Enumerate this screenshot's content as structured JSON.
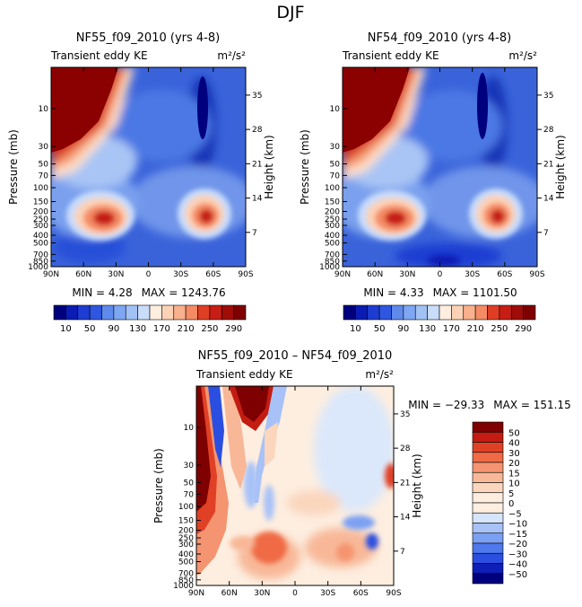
{
  "figure": {
    "title": "DJF"
  },
  "palettes": {
    "full": [
      "#00007f",
      "#0a1cb4",
      "#1e3cd2",
      "#2e56e0",
      "#4470e6",
      "#5f8aec",
      "#7ea6f2",
      "#a2c2f6",
      "#c9dcfa",
      "#fdeee0",
      "#fcd2b6",
      "#f9b08c",
      "#f58b64",
      "#ee6640",
      "#e03e24",
      "#c61e14",
      "#a00c08",
      "#7f0000"
    ],
    "diff": [
      "#00007f",
      "#0d1fb6",
      "#2a4fe0",
      "#4f78ec",
      "#7ba0f3",
      "#a8c2f7",
      "#d5e5fb",
      "#fdeee0",
      "#fbd6bd",
      "#f8b898",
      "#f59470",
      "#f06a45",
      "#e04126",
      "#c41c12",
      "#7f0000"
    ]
  },
  "chart_data": [
    {
      "type": "contour",
      "title": "NF55_f09_2010 (yrs 4-8)",
      "subtitle": "Transient eddy KE",
      "units": "m²/s²",
      "xlabel": "",
      "ylabel": "Pressure (mb)",
      "ylabel_right": "Height (km)",
      "x_ticks": [
        "90N",
        "60N",
        "30N",
        "0",
        "30S",
        "60S",
        "90S"
      ],
      "x_range": [
        90,
        -90
      ],
      "y_ticks": [
        10,
        30,
        50,
        70,
        100,
        150,
        200,
        250,
        300,
        400,
        500,
        700,
        850,
        1000
      ],
      "y_range_mb": [
        3,
        1000
      ],
      "height_ticks": [
        35,
        28,
        21,
        14,
        7
      ],
      "min_label": "MIN =    4.28",
      "max_label": "MAX = 1243.76",
      "min": 4.28,
      "max": 1243.76,
      "colorbar_levels": [
        10,
        30,
        50,
        70,
        90,
        110,
        130,
        150,
        170,
        190,
        210,
        230,
        250,
        270,
        290
      ],
      "colorbar_tick_labels": [
        "10",
        "50",
        "90",
        "130",
        "170",
        "210",
        "250",
        "290"
      ],
      "features": [
        {
          "name": "polar-vortex-north",
          "lat": 90,
          "p_mb": 3,
          "value": 1243.76
        },
        {
          "name": "jet-north",
          "lat": 37,
          "p_mb": 280,
          "value": 270
        },
        {
          "name": "jet-south",
          "lat": -48,
          "p_mb": 260,
          "value": 260
        },
        {
          "name": "strat-minimum-south",
          "lat": -40,
          "p_mb": 15,
          "value": 10
        }
      ]
    },
    {
      "type": "contour",
      "title": "NF54_f09_2010 (yrs 4-8)",
      "subtitle": "Transient eddy KE",
      "units": "m²/s²",
      "xlabel": "",
      "ylabel": "Pressure (mb)",
      "ylabel_right": "Height (km)",
      "x_ticks": [
        "90N",
        "60N",
        "30N",
        "0",
        "30S",
        "60S",
        "90S"
      ],
      "x_range": [
        90,
        -90
      ],
      "y_ticks": [
        10,
        30,
        50,
        70,
        100,
        150,
        200,
        250,
        300,
        400,
        500,
        700,
        850,
        1000
      ],
      "y_range_mb": [
        3,
        1000
      ],
      "height_ticks": [
        35,
        28,
        21,
        14,
        7
      ],
      "min_label": "MIN =    4.33",
      "max_label": "MAX = 1101.50",
      "min": 4.33,
      "max": 1101.5,
      "colorbar_levels": [
        10,
        30,
        50,
        70,
        90,
        110,
        130,
        150,
        170,
        190,
        210,
        230,
        250,
        270,
        290
      ],
      "colorbar_tick_labels": [
        "10",
        "50",
        "90",
        "130",
        "170",
        "210",
        "250",
        "290"
      ],
      "features": [
        {
          "name": "polar-vortex-north",
          "lat": 90,
          "p_mb": 3,
          "value": 1101.5
        },
        {
          "name": "jet-north",
          "lat": 37,
          "p_mb": 280,
          "value": 265
        },
        {
          "name": "jet-south",
          "lat": -48,
          "p_mb": 260,
          "value": 260
        },
        {
          "name": "strat-minimum-south",
          "lat": -40,
          "p_mb": 15,
          "value": 10
        }
      ]
    },
    {
      "type": "contour",
      "title": "NF55_f09_2010 – NF54_f09_2010",
      "subtitle": "Transient eddy KE",
      "units": "m²/s²",
      "xlabel": "",
      "ylabel": "Pressure (mb)",
      "ylabel_right": "Height (km)",
      "x_ticks": [
        "90N",
        "60N",
        "30N",
        "0",
        "30S",
        "60S",
        "90S"
      ],
      "x_range": [
        90,
        -90
      ],
      "y_ticks": [
        10,
        30,
        50,
        70,
        100,
        150,
        200,
        250,
        300,
        400,
        500,
        700,
        850,
        1000
      ],
      "y_range_mb": [
        3,
        1000
      ],
      "height_ticks": [
        35,
        28,
        21,
        14,
        7
      ],
      "min_label": "MIN = −29.33",
      "max_label": "MAX = 151.15",
      "min": -29.33,
      "max": 151.15,
      "colorbar_levels": [
        50,
        40,
        30,
        20,
        15,
        10,
        5,
        0,
        -5,
        -10,
        -15,
        -20,
        -30,
        -40,
        -50
      ],
      "colorbar_tick_labels": [
        "50",
        "40",
        "30",
        "20",
        "15",
        "10",
        "5",
        "0",
        "−5",
        "−10",
        "−15",
        "−20",
        "−30",
        "−40",
        "−50"
      ],
      "features": [
        {
          "name": "positive-high-north-strat",
          "lat": 88,
          "p_mb": 40,
          "value": 151.15
        },
        {
          "name": "positive-tongue-60N",
          "lat": 50,
          "p_mb": 5,
          "value": 50
        },
        {
          "name": "negative-minimum",
          "lat": 75,
          "p_mb": 8,
          "value": -29.33
        }
      ]
    }
  ]
}
